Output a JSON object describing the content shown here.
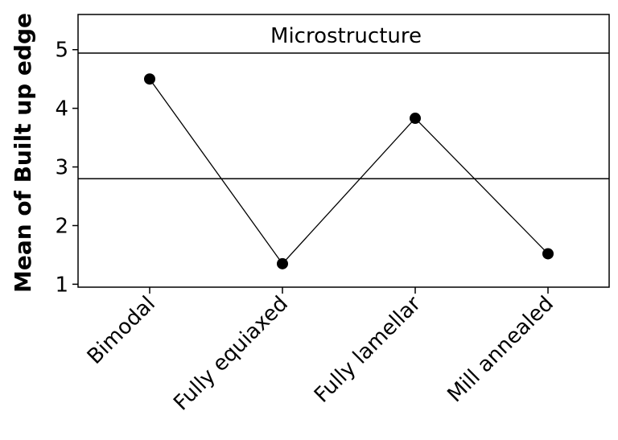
{
  "chart_data": {
    "type": "line",
    "title": "Microstructure",
    "xlabel": "",
    "ylabel": "Mean of Built up edge",
    "categories": [
      "Bimodal",
      "Fully equiaxed",
      "Fully lamellar",
      "Mill annealed"
    ],
    "values": [
      4.5,
      1.35,
      3.83,
      1.52
    ],
    "ylim": [
      0.95,
      5.6
    ],
    "yticks": [
      1,
      2,
      3,
      4,
      5
    ],
    "reference_line": 2.8,
    "grid": false,
    "legend": "none",
    "colors": {
      "line": "#000000",
      "marker": "#000000",
      "axes": "#000000"
    }
  }
}
